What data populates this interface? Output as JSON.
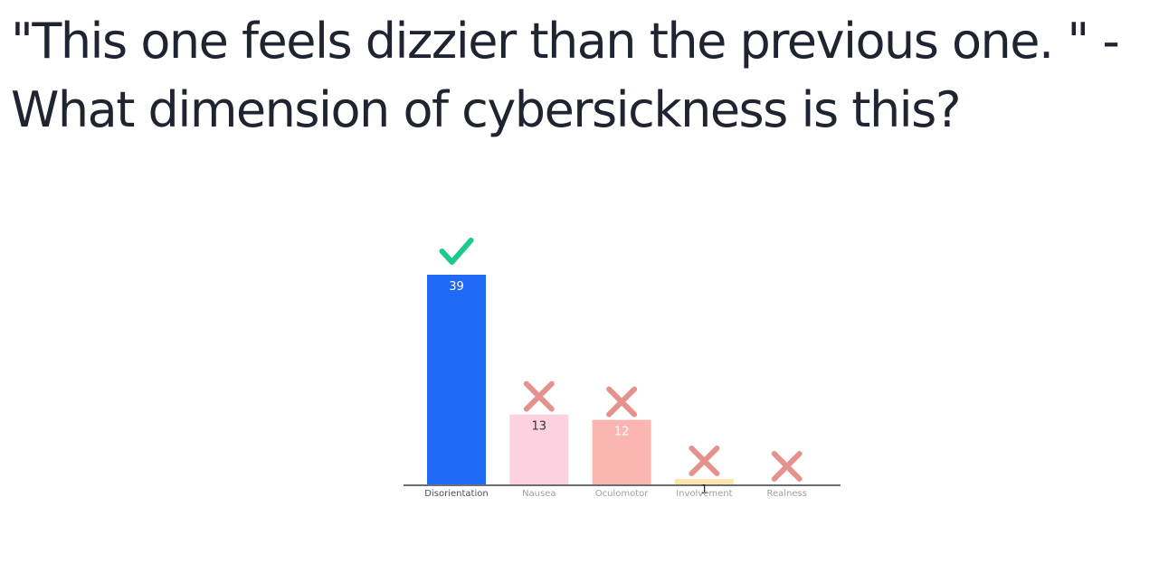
{
  "question": {
    "text": "\"This one feels dizzier than the previous one. \" - What dimension of cybersickness is this?"
  },
  "colors": {
    "text": "#1f2430",
    "axis": "#3a3f4a",
    "correct_mark": "#1fc98a",
    "incorrect_mark": "#e5928f"
  },
  "chart_data": {
    "type": "bar",
    "title": "",
    "xlabel": "",
    "ylabel": "",
    "ylim": [
      0,
      40
    ],
    "grid": false,
    "categories": [
      "Disorientation",
      "Nausea",
      "Oculomotor",
      "Involvement",
      "Realness"
    ],
    "values": [
      39,
      13,
      12,
      1,
      0
    ],
    "value_labels": [
      "39",
      "13",
      "12",
      "1",
      ""
    ],
    "correct": [
      true,
      false,
      false,
      false,
      false
    ],
    "bar_colors": [
      "#1f69f5",
      "#fdd1e0",
      "#fcb6b2",
      "#fde6ad",
      "#dde3f2"
    ],
    "value_label_colors": [
      "#ffffff",
      "#333333",
      "#ffffff",
      "#222222",
      "#333333"
    ]
  }
}
